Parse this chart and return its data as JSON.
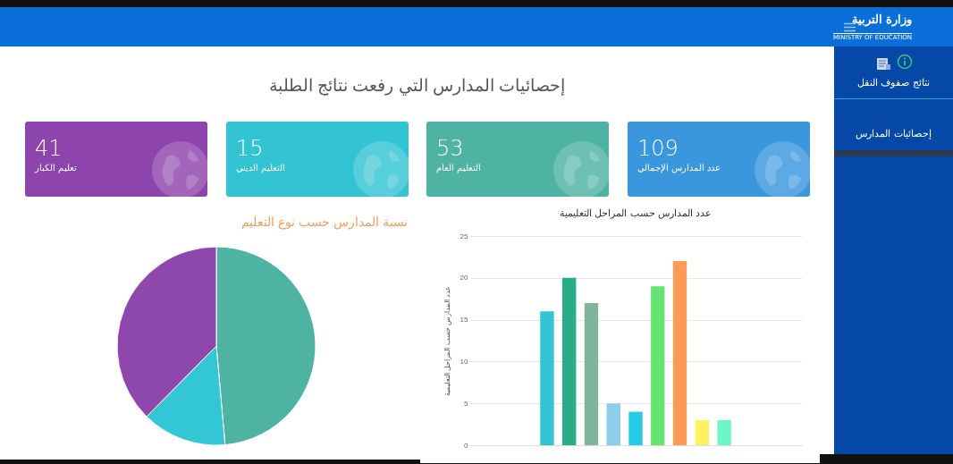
{
  "chart_data": [
    {
      "type": "other",
      "title": "إحصائيات المدارس التي رفعت نتائج الطلبة",
      "categories": [
        "عدد المدارس الإجمالي",
        "التعليم العام",
        "التعليم الديني",
        "تعليم الكبار"
      ],
      "values": [
        109,
        53,
        15,
        41
      ],
      "colors": [
        "#3a96dd",
        "#4fb3a4",
        "#33c4d3",
        "#8e44ad"
      ],
      "data_labels": true,
      "annotations": [
        "وزارة التربية",
        "MINISTRY OF EDUCATION",
        "نتائج صفوف النقل",
        "إحصائيات المدارس"
      ]
    },
    {
      "type": "pie",
      "title": "نسبة المدارس حسب نوع التعليم",
      "categories": [
        null,
        null,
        null
      ],
      "values": [
        48.6,
        13.8,
        37.6
      ],
      "colors": [
        "#4fb3a4",
        "#33c6d4",
        "#8e47ad"
      ]
    },
    {
      "type": "bar",
      "title": "عدد المدارس حسب المراحل التعليمية",
      "ylabel": "عدد المدارس حسب المراحل التعليمية",
      "categories": [
        null,
        null,
        null,
        null,
        null,
        null,
        null,
        null,
        null,
        null,
        null,
        null,
        null,
        null,
        null
      ],
      "values": [
        null,
        null,
        null,
        16,
        20,
        17,
        5,
        4,
        19,
        22,
        3,
        3,
        null,
        null,
        null
      ],
      "colors": [
        null,
        null,
        null,
        "#33c5d4",
        "#27ad88",
        "#80b59c",
        "#8ccde9",
        "#27cbe6",
        "#66e472",
        "#ff9a57",
        "#fff261",
        "#6cf7c6",
        null,
        null,
        null
      ],
      "ylim": [
        0,
        25
      ],
      "yticks": [
        0,
        5,
        10,
        15,
        20,
        25
      ],
      "grid": "y"
    }
  ]
}
